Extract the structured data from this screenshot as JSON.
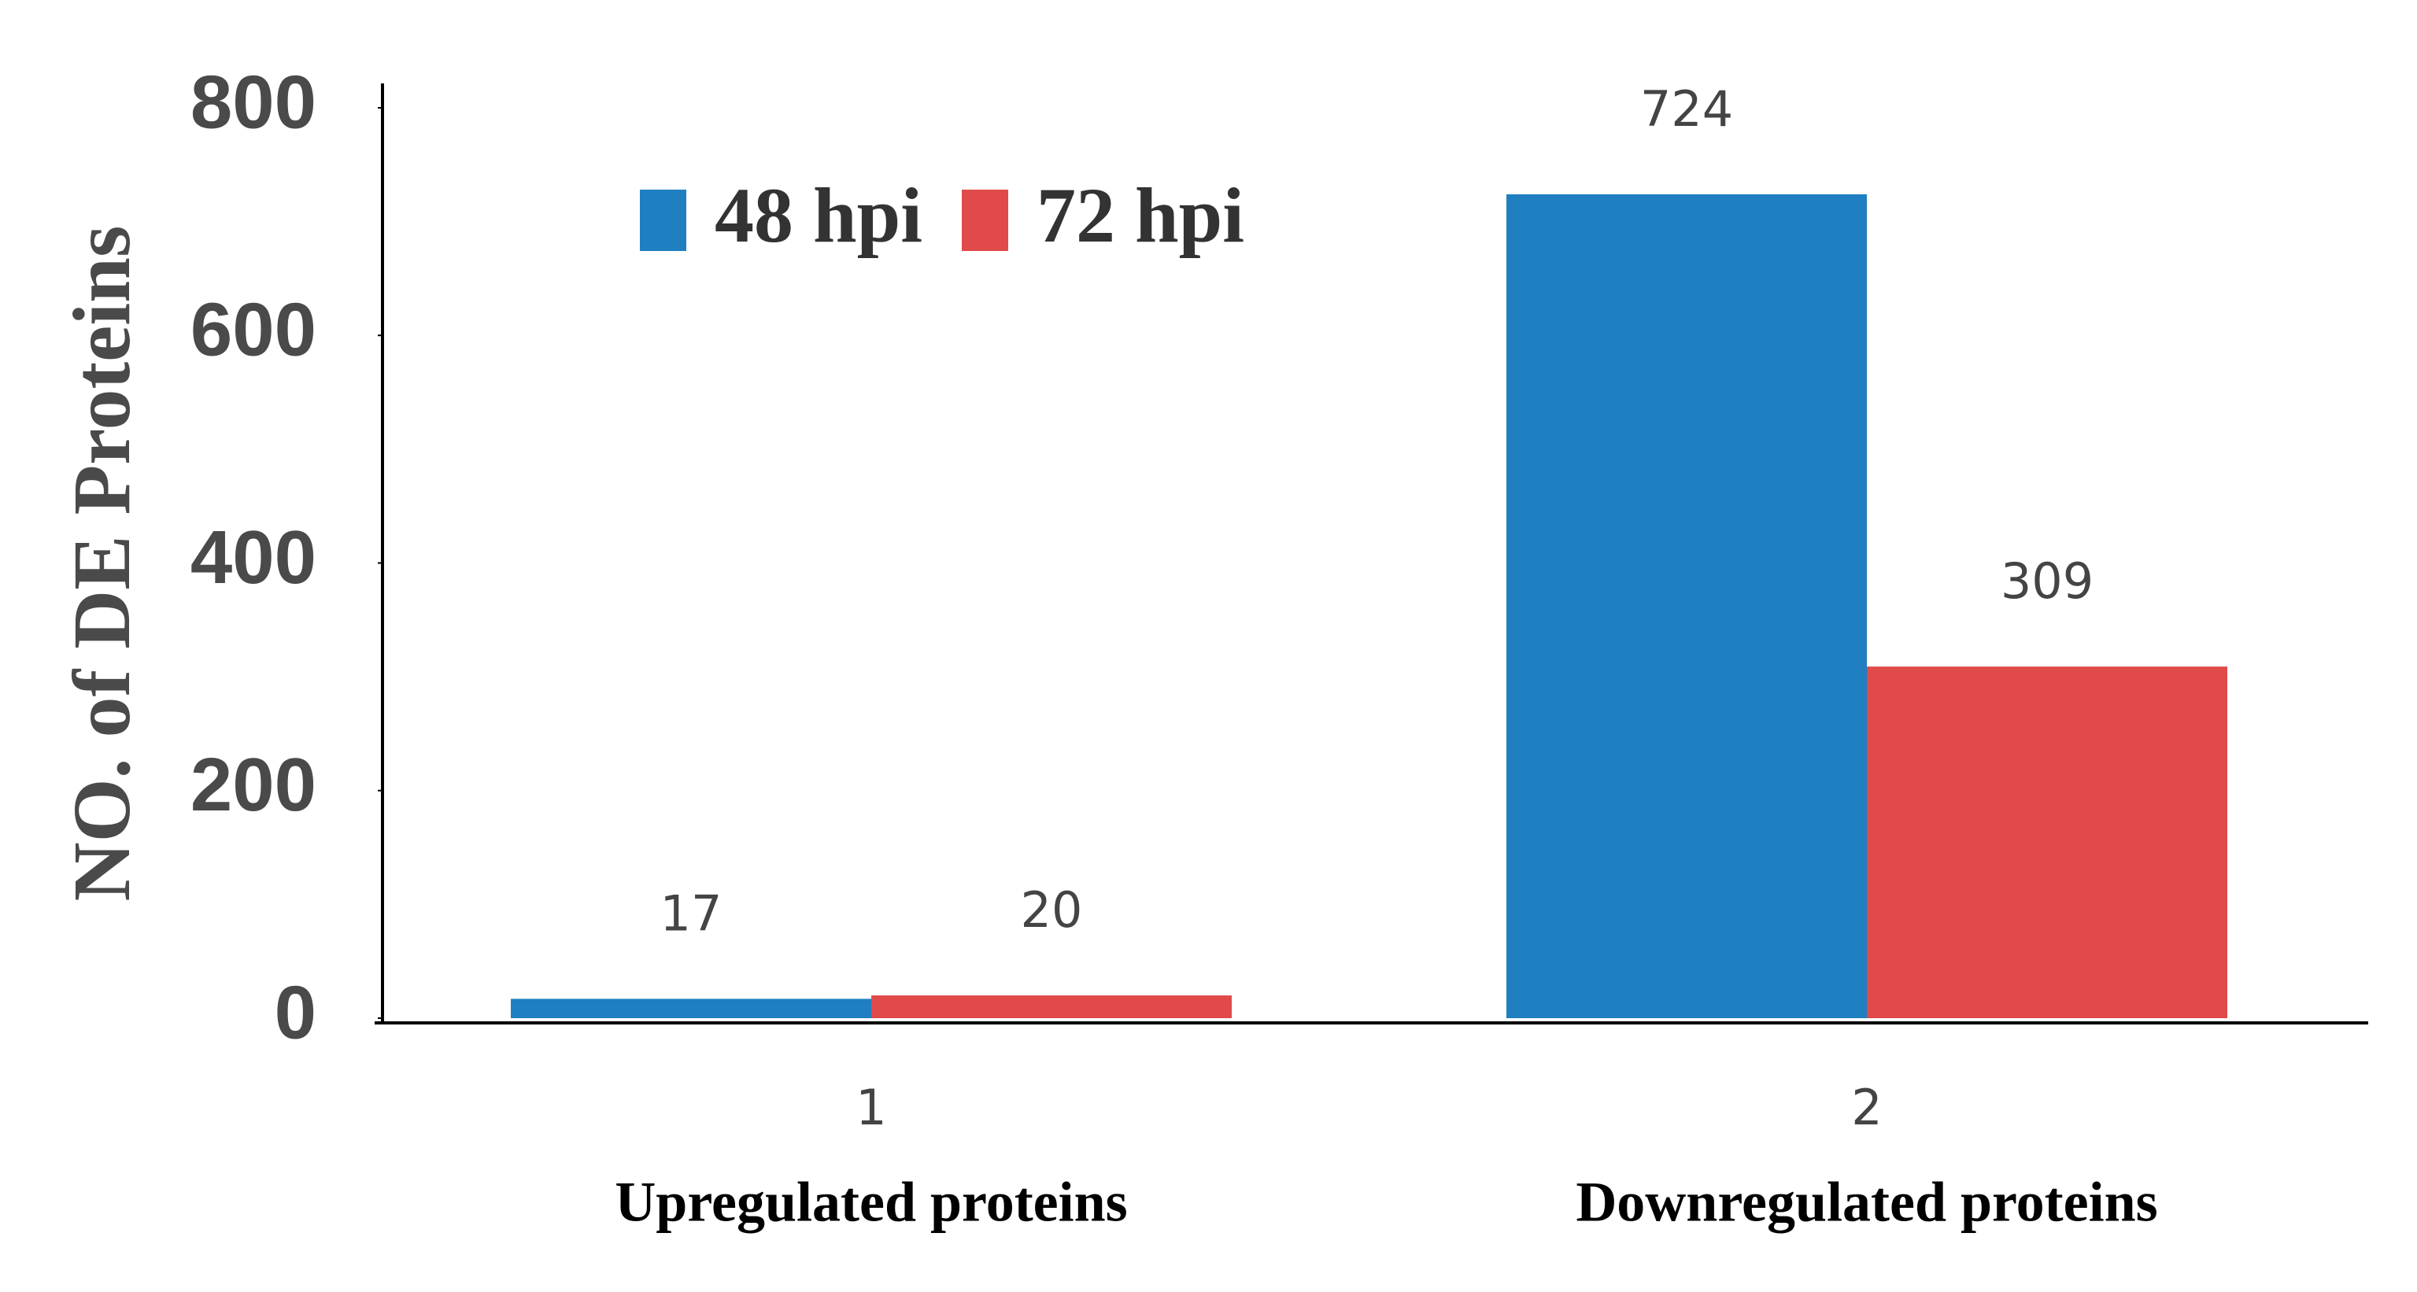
{
  "chart_data": {
    "type": "bar",
    "y_label": "NO. of  DE Proteins",
    "categories": [
      "1",
      "2"
    ],
    "group_labels": [
      "Upregulated proteins",
      "Downregulated proteins"
    ],
    "series": [
      {
        "name": "48 hpi",
        "color": "#1f7fc1",
        "values": [
          17,
          724
        ]
      },
      {
        "name": "72 hpi",
        "color": "#e04a4a",
        "values": [
          20,
          309
        ]
      }
    ],
    "ylim": [
      0,
      800
    ],
    "yticks": [
      0,
      200,
      400,
      600,
      800
    ],
    "grid": false
  }
}
